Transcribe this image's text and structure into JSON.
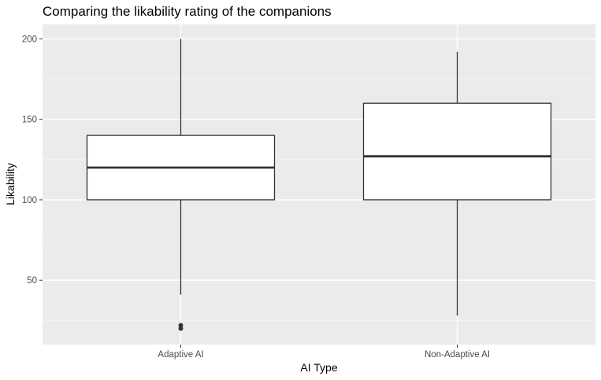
{
  "chart_data": {
    "type": "boxplot",
    "title": "Comparing the likability rating of the companions",
    "xlabel": "AI Type",
    "ylabel": "Likability",
    "ylim": [
      10,
      209
    ],
    "yticks": [
      50,
      100,
      150,
      200
    ],
    "grid": true,
    "categories": [
      "Adaptive AI",
      "Non-Adaptive AI"
    ],
    "boxes": [
      {
        "category": "Adaptive AI",
        "whisker_low": 41,
        "q1": 100,
        "median": 120,
        "q3": 140,
        "whisker_high": 200,
        "outliers": [
          20,
          22
        ]
      },
      {
        "category": "Non-Adaptive AI",
        "whisker_low": 28,
        "q1": 100,
        "median": 127,
        "q3": 160,
        "whisker_high": 192,
        "outliers": []
      }
    ],
    "colors": {
      "panel_background": "#ebebeb",
      "major_grid": "#ffffff",
      "minor_grid": "#f5f5f5",
      "box_fill": "#ffffff",
      "box_stroke": "#333333",
      "axis_text": "#4d4d4d",
      "title_text": "#000000"
    }
  }
}
